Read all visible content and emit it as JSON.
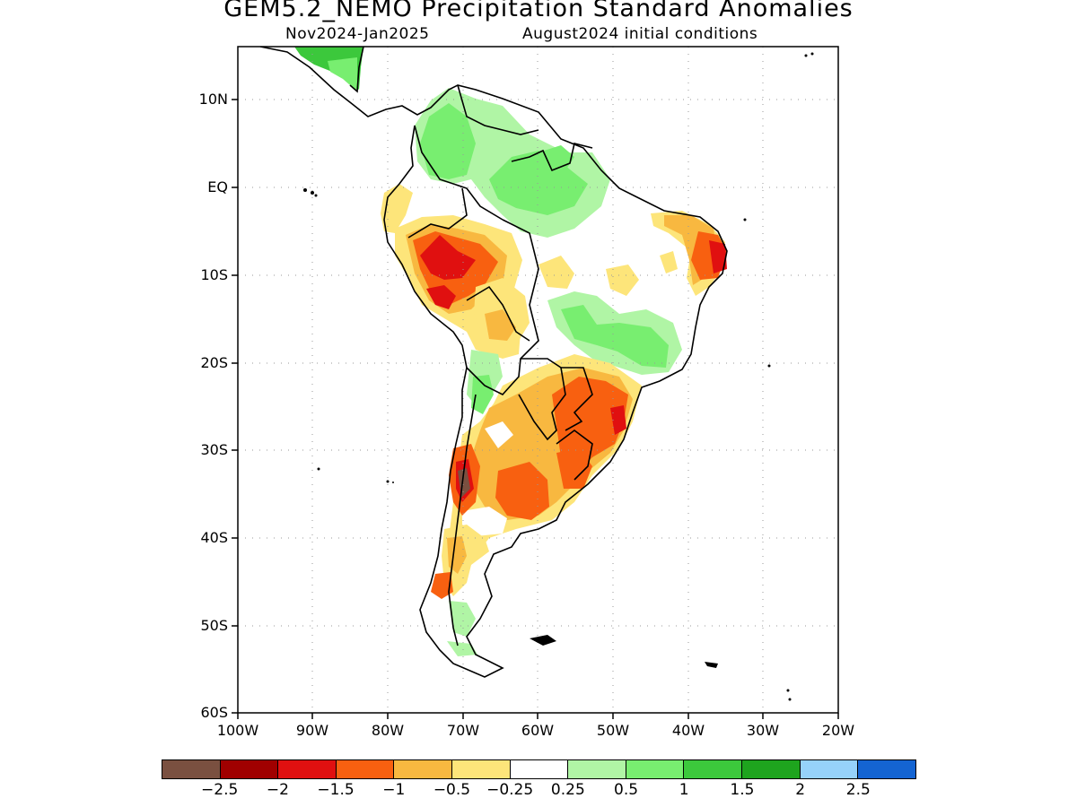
{
  "title": "GEM5.2_NEMO Precipitation Standard Anomalies",
  "subtitle_period": "Nov2024-Jan2025",
  "subtitle_init": "August2024 initial conditions",
  "axes": {
    "lat_labels": [
      "10N",
      "EQ",
      "10S",
      "20S",
      "30S",
      "40S",
      "50S",
      "60S"
    ],
    "lon_labels": [
      "100W",
      "90W",
      "80W",
      "70W",
      "60W",
      "50W",
      "40W",
      "30W",
      "20W"
    ],
    "lat_range": [
      -60,
      16
    ],
    "lon_range": [
      -100,
      -20
    ],
    "grid": "dotted"
  },
  "colorbar": {
    "colors": [
      "#7a5040",
      "#a00000",
      "#e01010",
      "#f86010",
      "#f8b840",
      "#fde57a",
      "#ffffff",
      "#b0f5a5",
      "#78ee70",
      "#3cc83c",
      "#1ea41e",
      "#96d2fa",
      "#1464d2"
    ],
    "labels": [
      "-2.5",
      "-2",
      "-1.5",
      "-1",
      "-0.5",
      "-0.25",
      "0.25",
      "0.5",
      "1",
      "1.5",
      "2",
      "2.5"
    ]
  },
  "regions": [
    {
      "name": "central-america",
      "category": "1"
    },
    {
      "name": "colombia-venezuela",
      "category": "0.5"
    },
    {
      "name": "northern-amazon",
      "category": "0.5"
    },
    {
      "name": "ecuador-coast",
      "category": "-0.5"
    },
    {
      "name": "peru-amazon",
      "category": "-1"
    },
    {
      "name": "peru-core",
      "category": "-1.5"
    },
    {
      "name": "bolivia",
      "category": "-0.5"
    },
    {
      "name": "northeast-brazil",
      "category": "-0.5"
    },
    {
      "name": "northeast-brazil-core",
      "category": "-1.5"
    },
    {
      "name": "central-brazil",
      "category": "0.5"
    },
    {
      "name": "southern-brazil-paraguay",
      "category": "-1"
    },
    {
      "name": "argentina-central",
      "category": "-0.5"
    },
    {
      "name": "central-chile",
      "category": "-2.5"
    },
    {
      "name": "patagonia",
      "category": "-0.5"
    },
    {
      "name": "southern-chile",
      "category": "0.5"
    }
  ]
}
